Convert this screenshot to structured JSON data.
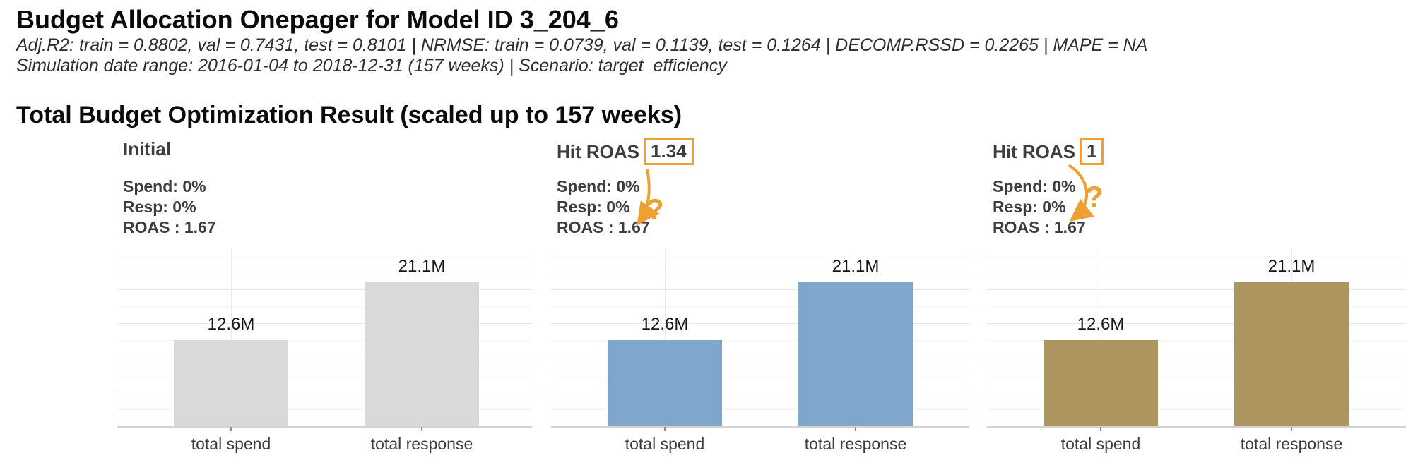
{
  "header": {
    "title": "Budget Allocation Onepager for Model ID 3_204_6",
    "metrics_line": "Adj.R2: train = 0.8802, val = 0.7431, test = 0.8101 | NRMSE: train = 0.0739, val = 0.1139, test = 0.1264 | DECOMP.RSSD = 0.2265 | MAPE = NA",
    "simulation_line": "Simulation date range: 2016-01-04 to 2018-12-31 (157 weeks) | Scenario: target_efficiency"
  },
  "section": {
    "title": "Total Budget Optimization Result (scaled up to 157 weeks)"
  },
  "colors": {
    "initial_bar": "#D9D9D9",
    "target_roas_134_bar": "#7FA7CB",
    "target_roas_1_bar": "#AD9560",
    "annotation_orange": "#EFA033",
    "text_dark": "#3d3d3d"
  },
  "chart_data": [
    {
      "type": "bar",
      "title": "Initial",
      "header": {
        "label": "Initial",
        "boxed_value": null
      },
      "stats": {
        "spend": "Spend: 0%",
        "resp": "Resp: 0%",
        "roas": "ROAS : 1.67"
      },
      "categories": [
        "total spend",
        "total response"
      ],
      "values": [
        12.6,
        21.1
      ],
      "value_labels": [
        "12.6M",
        "21.1M"
      ],
      "unit": "M",
      "ylim": [
        0,
        26
      ],
      "grid": true,
      "bar_color": "#D9D9D9",
      "annotation": null
    },
    {
      "type": "bar",
      "title": "Hit ROAS 1.34",
      "header": {
        "label": "Hit ROAS",
        "boxed_value": "1.34"
      },
      "stats": {
        "spend": "Spend: 0%",
        "resp": "Resp: 0%",
        "roas": "ROAS : 1.67"
      },
      "categories": [
        "total spend",
        "total response"
      ],
      "values": [
        12.6,
        21.1
      ],
      "value_labels": [
        "12.6M",
        "21.1M"
      ],
      "unit": "M",
      "ylim": [
        0,
        26
      ],
      "grid": true,
      "bar_color": "#7FA7CB",
      "annotation": {
        "question_mark": "?"
      }
    },
    {
      "type": "bar",
      "title": "Hit ROAS 1",
      "header": {
        "label": "Hit ROAS",
        "boxed_value": "1"
      },
      "stats": {
        "spend": "Spend: 0%",
        "resp": "Resp: 0%",
        "roas": "ROAS : 1.67"
      },
      "categories": [
        "total spend",
        "total response"
      ],
      "values": [
        12.6,
        21.1
      ],
      "value_labels": [
        "12.6M",
        "21.1M"
      ],
      "unit": "M",
      "ylim": [
        0,
        26
      ],
      "grid": true,
      "bar_color": "#AD9560",
      "annotation": {
        "question_mark": "?"
      }
    }
  ]
}
